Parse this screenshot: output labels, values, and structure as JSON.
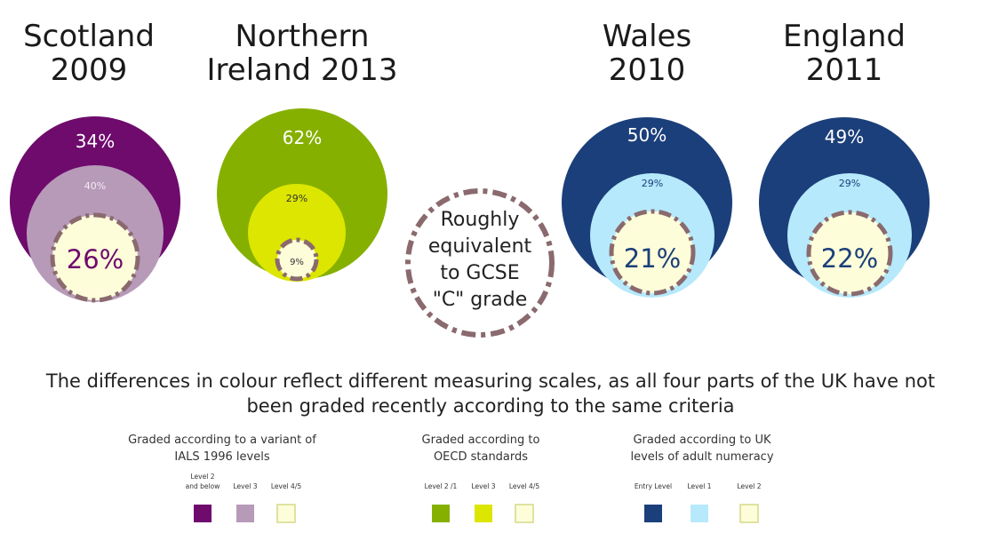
{
  "chart_data": {
    "type": "nested-circles",
    "regions": [
      {
        "title_lines": [
          "Scotland",
          "2009"
        ],
        "scale": "ials",
        "rings": [
          {
            "label": "34%",
            "value": 34,
            "color": "#6e0b6d",
            "text_color": "#ffffff"
          },
          {
            "label": "40%",
            "value": 40,
            "color": "#b79ab8",
            "text_color": "#f2eaf2"
          },
          {
            "label": "26%",
            "value": 26,
            "color": "#fdfdda",
            "text_color": "#6e0b6d"
          }
        ]
      },
      {
        "title_lines": [
          "Northern",
          "Ireland 2013"
        ],
        "scale": "oecd",
        "rings": [
          {
            "label": "62%",
            "value": 62,
            "color": "#86b000",
            "text_color": "#ffffff"
          },
          {
            "label": "29%",
            "value": 29,
            "color": "#dce600",
            "text_color": "#333333"
          },
          {
            "label": "9%",
            "value": 9,
            "color": "#fdfdda",
            "text_color": "#333333"
          }
        ]
      },
      {
        "title_lines": [
          "Wales",
          "2010"
        ],
        "scale": "uk",
        "rings": [
          {
            "label": "50%",
            "value": 50,
            "color": "#1b3f7a",
            "text_color": "#ffffff"
          },
          {
            "label": "29%",
            "value": 29,
            "color": "#b6e9fb",
            "text_color": "#1b3f7a"
          },
          {
            "label": "21%",
            "value": 21,
            "color": "#fdfdda",
            "text_color": "#1b3f7a"
          }
        ]
      },
      {
        "title_lines": [
          "England",
          "2011"
        ],
        "scale": "uk",
        "rings": [
          {
            "label": "49%",
            "value": 49,
            "color": "#1b3f7a",
            "text_color": "#ffffff"
          },
          {
            "label": "29%",
            "value": 29,
            "color": "#b6e9fb",
            "text_color": "#1b3f7a"
          },
          {
            "label": "22%",
            "value": 22,
            "color": "#fdfdda",
            "text_color": "#1b3f7a"
          }
        ]
      }
    ],
    "equivalent_marker": {
      "lines": [
        "Roughly",
        "equivalent",
        "to GCSE",
        "\"C\" grade"
      ],
      "stroke_color": "#8a6a6e"
    },
    "note_lines": [
      "The differences in colour reflect different measuring scales, as all four parts of the UK have not",
      "been graded recently according to the same criteria"
    ],
    "legends": [
      {
        "title_lines": [
          "Graded according to a variant of",
          "IALS 1996 levels"
        ],
        "items": [
          {
            "label_lines": [
              "Level 2",
              "and below"
            ],
            "color": "#6e0b6d"
          },
          {
            "label_lines": [
              "Level 3"
            ],
            "color": "#b79ab8"
          },
          {
            "label_lines": [
              "Level 4/5"
            ],
            "color": "#fdfdda"
          }
        ]
      },
      {
        "title_lines": [
          "Graded according to",
          "OECD standards"
        ],
        "items": [
          {
            "label_lines": [
              "Level 2 /1"
            ],
            "color": "#86b000"
          },
          {
            "label_lines": [
              "Level 3"
            ],
            "color": "#dce600"
          },
          {
            "label_lines": [
              "Level 4/5"
            ],
            "color": "#fdfdda"
          }
        ]
      },
      {
        "title_lines": [
          "Graded according to UK",
          "levels of adult numeracy"
        ],
        "items": [
          {
            "label_lines": [
              "Entry Level"
            ],
            "color": "#1b3f7a"
          },
          {
            "label_lines": [
              "Level 1"
            ],
            "color": "#b6e9fb"
          },
          {
            "label_lines": [
              "Level 2"
            ],
            "color": "#fdfdda"
          }
        ]
      }
    ]
  }
}
